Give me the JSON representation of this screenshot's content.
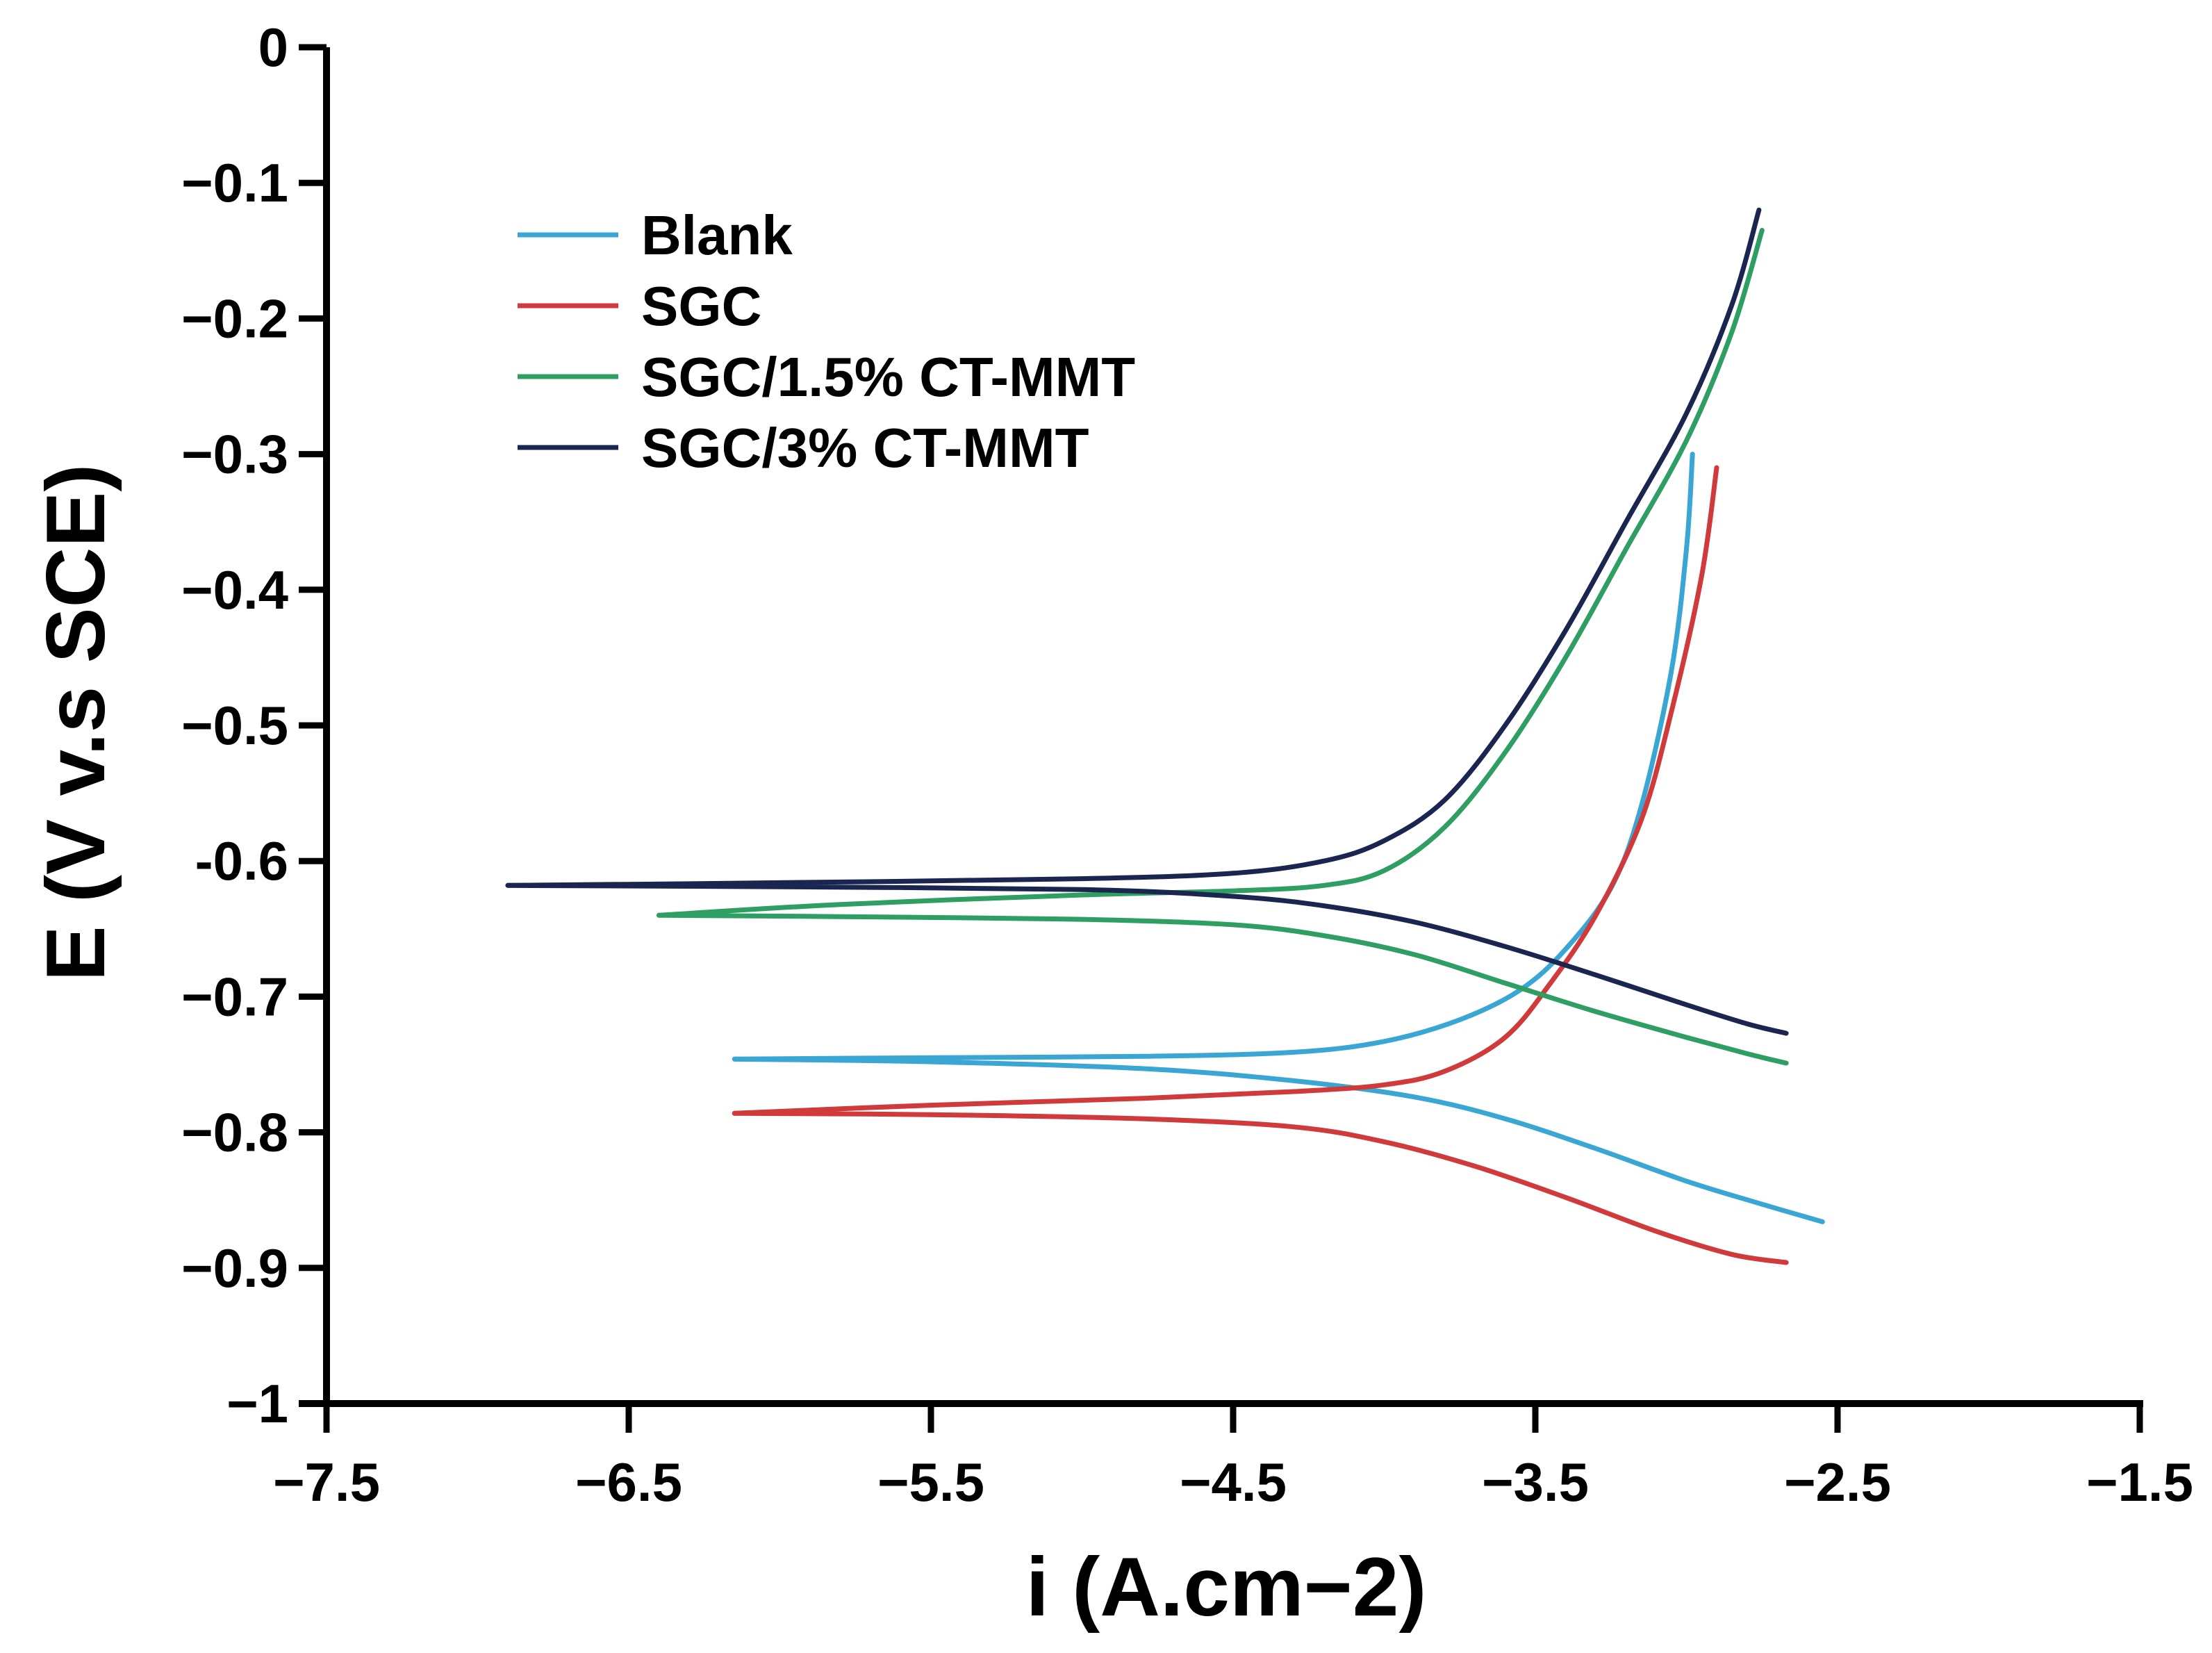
{
  "chart_data": {
    "type": "line",
    "title": "",
    "xlabel": "i (A.cm−2)",
    "ylabel": "E (V v.s SCE)",
    "xlim": [
      -7.5,
      -1.5
    ],
    "ylim": [
      -1,
      0
    ],
    "xticks": [
      -7.5,
      -6.5,
      -5.5,
      -4.5,
      -3.5,
      -2.5,
      -1.5
    ],
    "xtick_labels": [
      "−7.5",
      "−6.5",
      "−5.5",
      "−4.5",
      "−3.5",
      "−2.5",
      "−1.5"
    ],
    "yticks": [
      0,
      -0.1,
      -0.2,
      -0.3,
      -0.4,
      -0.5,
      -0.6,
      -0.7,
      -0.8,
      -0.9,
      -1
    ],
    "ytick_labels": [
      "0",
      "−0.1",
      "−0.2",
      "−0.3",
      "−0.4",
      "−0.5",
      "-0.6",
      "−0.7",
      "−0.8",
      "−0.9",
      "−1"
    ],
    "grid": false,
    "legend_position": "top-left",
    "series": [
      {
        "name": "Blank",
        "color": "#3aa6d3",
        "anodic": [
          [
            -6.15,
            -0.746
          ],
          [
            -5.5,
            -0.745
          ],
          [
            -4.8,
            -0.744
          ],
          [
            -4.3,
            -0.741
          ],
          [
            -4.0,
            -0.733
          ],
          [
            -3.75,
            -0.717
          ],
          [
            -3.55,
            -0.695
          ],
          [
            -3.4,
            -0.665
          ],
          [
            -3.25,
            -0.62
          ],
          [
            -3.15,
            -0.56
          ],
          [
            -3.05,
            -0.46
          ],
          [
            -3.0,
            -0.37
          ],
          [
            -2.98,
            -0.3
          ]
        ],
        "cathodic": [
          [
            -6.15,
            -0.746
          ],
          [
            -5.5,
            -0.748
          ],
          [
            -4.8,
            -0.753
          ],
          [
            -4.3,
            -0.762
          ],
          [
            -3.9,
            -0.774
          ],
          [
            -3.6,
            -0.79
          ],
          [
            -3.3,
            -0.812
          ],
          [
            -3.0,
            -0.836
          ],
          [
            -2.75,
            -0.853
          ],
          [
            -2.55,
            -0.866
          ]
        ]
      },
      {
        "name": "SGC",
        "color": "#d03a3a",
        "anodic": [
          [
            -6.15,
            -0.786
          ],
          [
            -5.5,
            -0.78
          ],
          [
            -4.8,
            -0.775
          ],
          [
            -4.3,
            -0.77
          ],
          [
            -4.0,
            -0.765
          ],
          [
            -3.8,
            -0.755
          ],
          [
            -3.6,
            -0.73
          ],
          [
            -3.45,
            -0.69
          ],
          [
            -3.3,
            -0.64
          ],
          [
            -3.15,
            -0.57
          ],
          [
            -3.05,
            -0.49
          ],
          [
            -2.95,
            -0.39
          ],
          [
            -2.9,
            -0.31
          ]
        ],
        "cathodic": [
          [
            -6.15,
            -0.786
          ],
          [
            -5.5,
            -0.787
          ],
          [
            -4.8,
            -0.79
          ],
          [
            -4.3,
            -0.796
          ],
          [
            -4.0,
            -0.807
          ],
          [
            -3.7,
            -0.825
          ],
          [
            -3.4,
            -0.848
          ],
          [
            -3.1,
            -0.873
          ],
          [
            -2.85,
            -0.89
          ],
          [
            -2.67,
            -0.896
          ]
        ]
      },
      {
        "name": "SGC/1.5% CT-MMT",
        "color": "#2e9e62",
        "anodic": [
          [
            -6.4,
            -0.64
          ],
          [
            -5.8,
            -0.632
          ],
          [
            -5.0,
            -0.625
          ],
          [
            -4.5,
            -0.622
          ],
          [
            -4.2,
            -0.618
          ],
          [
            -4.0,
            -0.607
          ],
          [
            -3.8,
            -0.575
          ],
          [
            -3.6,
            -0.52
          ],
          [
            -3.4,
            -0.45
          ],
          [
            -3.2,
            -0.37
          ],
          [
            -3.0,
            -0.29
          ],
          [
            -2.85,
            -0.21
          ],
          [
            -2.75,
            -0.135
          ]
        ],
        "cathodic": [
          [
            -6.4,
            -0.64
          ],
          [
            -5.8,
            -0.641
          ],
          [
            -5.0,
            -0.643
          ],
          [
            -4.5,
            -0.647
          ],
          [
            -4.2,
            -0.655
          ],
          [
            -3.9,
            -0.669
          ],
          [
            -3.6,
            -0.69
          ],
          [
            -3.3,
            -0.711
          ],
          [
            -3.0,
            -0.73
          ],
          [
            -2.8,
            -0.742
          ],
          [
            -2.67,
            -0.749
          ]
        ]
      },
      {
        "name": "SGC/3% CT-MMT",
        "color": "#1a2550",
        "anodic": [
          [
            -6.9,
            -0.618
          ],
          [
            -6.0,
            -0.616
          ],
          [
            -5.0,
            -0.613
          ],
          [
            -4.5,
            -0.609
          ],
          [
            -4.2,
            -0.6
          ],
          [
            -4.0,
            -0.585
          ],
          [
            -3.8,
            -0.555
          ],
          [
            -3.6,
            -0.5
          ],
          [
            -3.4,
            -0.43
          ],
          [
            -3.2,
            -0.35
          ],
          [
            -3.0,
            -0.27
          ],
          [
            -2.85,
            -0.19
          ],
          [
            -2.76,
            -0.12
          ]
        ],
        "cathodic": [
          [
            -6.9,
            -0.618
          ],
          [
            -6.0,
            -0.619
          ],
          [
            -5.0,
            -0.621
          ],
          [
            -4.5,
            -0.626
          ],
          [
            -4.2,
            -0.633
          ],
          [
            -3.9,
            -0.645
          ],
          [
            -3.6,
            -0.663
          ],
          [
            -3.3,
            -0.684
          ],
          [
            -3.0,
            -0.706
          ],
          [
            -2.8,
            -0.72
          ],
          [
            -2.67,
            -0.727
          ]
        ]
      }
    ]
  }
}
